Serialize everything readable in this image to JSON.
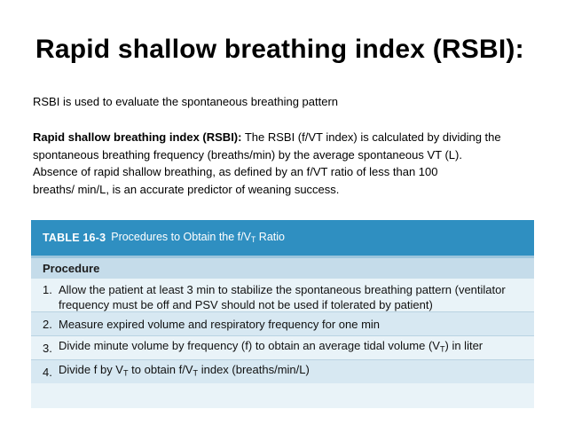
{
  "slide": {
    "title": "Rapid shallow breathing index (RSBI):",
    "intro": "RSBI is  used to evaluate the spontaneous breathing pattern",
    "definition_term": "Rapid shallow breathing index (RSBI):",
    "definition_line1": " The RSBI (f/VT index) is calculated by dividing the",
    "definition_line2": "spontaneous breathing frequency (breaths/min) by the average spontaneous VT (L).",
    "definition_line3": "Absence of rapid shallow breathing, as defined by an f/VT ratio of less than 100",
    "definition_line4": "breaths/ min/L, is an accurate predictor of weaning success."
  },
  "table": {
    "number": "TABLE 16-3",
    "caption_pre": "Procedures to Obtain the f/V",
    "caption_sub": "T",
    "caption_post": " Ratio",
    "column_header": "Procedure",
    "rows": [
      {
        "num": "1.",
        "line1": "Allow the patient at least 3 min to stabilize the spontaneous breathing pattern (ventilator",
        "line2": "frequency must be off and PSV should not be used if tolerated by patient)"
      },
      {
        "num": "2.",
        "text": "Measure expired volume and respiratory frequency for one min"
      },
      {
        "num": "3.",
        "pre": "Divide minute volume by frequency (f) to obtain an average tidal volume (V",
        "sub": "T",
        "post": ") in liter"
      },
      {
        "num": "4.",
        "pre": "Divide f by V",
        "sub": "T",
        "post": " to obtain f/V",
        "sub2": "T",
        "post2": " index (breaths/min/L)"
      }
    ]
  }
}
